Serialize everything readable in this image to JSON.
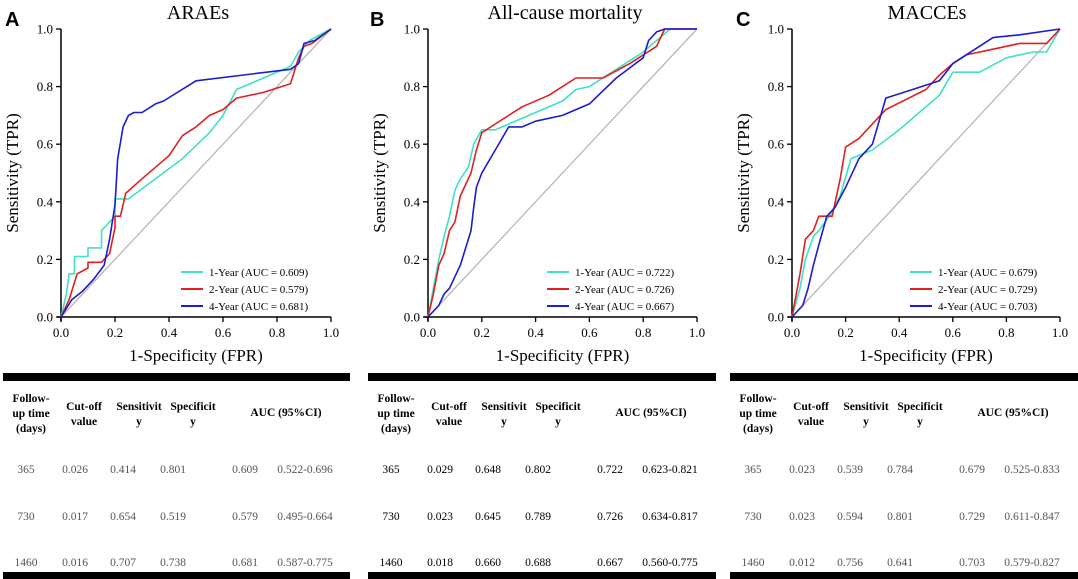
{
  "chart_data": [
    {
      "type": "line",
      "panel_letter": "A",
      "title": "ARAEs",
      "xlabel": "1-Specificity (FPR)",
      "ylabel": "Sensitivity (TPR)",
      "xlim": [
        0,
        1
      ],
      "ylim": [
        0,
        1
      ],
      "xticks": [
        "0.0",
        "0.2",
        "0.4",
        "0.6",
        "0.8",
        "1.0"
      ],
      "yticks": [
        "0.0",
        "0.2",
        "0.4",
        "0.6",
        "0.8",
        "1.0"
      ],
      "legend_position": "lower-right",
      "series": [
        {
          "name": "1-Year (AUC = 0.609)",
          "color": "#3fe0c8",
          "x": [
            0,
            0.02,
            0.03,
            0.05,
            0.05,
            0.1,
            0.1,
            0.15,
            0.15,
            0.2,
            0.2,
            0.25,
            0.45,
            0.55,
            0.6,
            0.65,
            0.75,
            0.85,
            0.88,
            0.92,
            1
          ],
          "y": [
            0,
            0.08,
            0.15,
            0.15,
            0.21,
            0.21,
            0.24,
            0.24,
            0.3,
            0.35,
            0.41,
            0.41,
            0.55,
            0.64,
            0.7,
            0.79,
            0.83,
            0.87,
            0.92,
            0.96,
            1
          ]
        },
        {
          "name": "2-Year (AUC = 0.579)",
          "color": "#e02020",
          "x": [
            0,
            0.03,
            0.06,
            0.1,
            0.1,
            0.15,
            0.18,
            0.2,
            0.2,
            0.22,
            0.24,
            0.3,
            0.4,
            0.45,
            0.5,
            0.55,
            0.6,
            0.65,
            0.75,
            0.85,
            0.88,
            0.9,
            0.93,
            1
          ],
          "y": [
            0,
            0.06,
            0.15,
            0.17,
            0.19,
            0.19,
            0.22,
            0.31,
            0.35,
            0.35,
            0.43,
            0.48,
            0.56,
            0.63,
            0.66,
            0.7,
            0.72,
            0.76,
            0.78,
            0.81,
            0.9,
            0.94,
            0.95,
            1
          ]
        },
        {
          "name": "4-Year (AUC = 0.681)",
          "color": "#1c1cd0",
          "x": [
            0,
            0.04,
            0.08,
            0.12,
            0.16,
            0.18,
            0.2,
            0.21,
            0.23,
            0.25,
            0.27,
            0.3,
            0.35,
            0.38,
            0.5,
            0.85,
            0.88,
            0.9,
            0.94,
            1
          ],
          "y": [
            0,
            0.06,
            0.09,
            0.13,
            0.18,
            0.27,
            0.39,
            0.55,
            0.66,
            0.7,
            0.71,
            0.71,
            0.74,
            0.75,
            0.82,
            0.86,
            0.88,
            0.95,
            0.96,
            1
          ]
        }
      ],
      "table": {
        "headers": [
          "Follow-up time (days)",
          "Cut-off value",
          "Sensitivity",
          "Specificity",
          "AUC (95%CI)"
        ],
        "rows": [
          {
            "days": "365",
            "cutoff": "0.026",
            "sens": "0.414",
            "spec": "0.801",
            "auc": "0.609",
            "ci": "0.522-0.696"
          },
          {
            "days": "730",
            "cutoff": "0.017",
            "sens": "0.654",
            "spec": "0.519",
            "auc": "0.579",
            "ci": "0.495-0.664"
          },
          {
            "days": "1460",
            "cutoff": "0.016",
            "sens": "0.707",
            "spec": "0.738",
            "auc": "0.681",
            "ci": "0.587-0.775"
          }
        ]
      }
    },
    {
      "type": "line",
      "panel_letter": "B",
      "title": "All-cause mortality",
      "xlabel": "1-Specificity (FPR)",
      "ylabel": "Sensitivity (TPR)",
      "xlim": [
        0,
        1
      ],
      "ylim": [
        0,
        1
      ],
      "xticks": [
        "0.0",
        "0.2",
        "0.4",
        "0.6",
        "0.8",
        "1.0"
      ],
      "yticks": [
        "0.0",
        "0.2",
        "0.4",
        "0.6",
        "0.8",
        "1.0"
      ],
      "legend_position": "lower-right",
      "series": [
        {
          "name": "1-Year (AUC = 0.722)",
          "color": "#3fe0c8",
          "x": [
            0,
            0.02,
            0.04,
            0.06,
            0.08,
            0.1,
            0.12,
            0.15,
            0.17,
            0.2,
            0.25,
            0.4,
            0.5,
            0.55,
            0.6,
            0.7,
            0.8,
            0.85,
            0.9,
            1
          ],
          "y": [
            0,
            0.1,
            0.2,
            0.28,
            0.35,
            0.44,
            0.48,
            0.52,
            0.6,
            0.65,
            0.65,
            0.71,
            0.75,
            0.79,
            0.8,
            0.86,
            0.92,
            0.96,
            1,
            1
          ]
        },
        {
          "name": "2-Year (AUC = 0.726)",
          "color": "#e02020",
          "x": [
            0,
            0.02,
            0.04,
            0.06,
            0.08,
            0.1,
            0.12,
            0.14,
            0.16,
            0.18,
            0.2,
            0.25,
            0.35,
            0.45,
            0.5,
            0.55,
            0.65,
            0.75,
            0.85,
            0.88,
            1
          ],
          "y": [
            0,
            0.08,
            0.18,
            0.22,
            0.3,
            0.33,
            0.42,
            0.46,
            0.5,
            0.58,
            0.64,
            0.67,
            0.73,
            0.77,
            0.8,
            0.83,
            0.83,
            0.88,
            0.94,
            1,
            1
          ]
        },
        {
          "name": "4-Year (AUC = 0.667)",
          "color": "#1c1cd0",
          "x": [
            0,
            0.04,
            0.06,
            0.08,
            0.1,
            0.12,
            0.14,
            0.16,
            0.17,
            0.18,
            0.2,
            0.25,
            0.3,
            0.35,
            0.4,
            0.5,
            0.6,
            0.7,
            0.8,
            0.82,
            0.85,
            0.88,
            1
          ],
          "y": [
            0,
            0.04,
            0.08,
            0.1,
            0.14,
            0.18,
            0.24,
            0.3,
            0.38,
            0.45,
            0.5,
            0.58,
            0.66,
            0.66,
            0.68,
            0.7,
            0.74,
            0.83,
            0.9,
            0.96,
            0.99,
            1,
            1
          ]
        }
      ],
      "table": {
        "headers": [
          "Follow-up time (days)",
          "Cut-off value",
          "Sensitivity",
          "Specificity",
          "AUC (95%CI)"
        ],
        "rows": [
          {
            "days": "365",
            "cutoff": "0.029",
            "sens": "0.648",
            "spec": "0.802",
            "auc": "0.722",
            "ci": "0.623-0.821"
          },
          {
            "days": "730",
            "cutoff": "0.023",
            "sens": "0.645",
            "spec": "0.789",
            "auc": "0.726",
            "ci": "0.634-0.817"
          },
          {
            "days": "1460",
            "cutoff": "0.018",
            "sens": "0.660",
            "spec": "0.688",
            "auc": "0.667",
            "ci": "0.560-0.775"
          }
        ]
      }
    },
    {
      "type": "line",
      "panel_letter": "C",
      "title": "MACCEs",
      "xlabel": "1-Specificity (FPR)",
      "ylabel": "Sensitivity (TPR)",
      "xlim": [
        0,
        1
      ],
      "ylim": [
        0,
        1
      ],
      "xticks": [
        "0.0",
        "0.2",
        "0.4",
        "0.6",
        "0.8",
        "1.0"
      ],
      "yticks": [
        "0.0",
        "0.2",
        "0.4",
        "0.6",
        "0.8",
        "1.0"
      ],
      "legend_position": "lower-right",
      "series": [
        {
          "name": "1-Year (AUC = 0.679)",
          "color": "#3fe0c8",
          "x": [
            0,
            0.03,
            0.05,
            0.08,
            0.1,
            0.14,
            0.18,
            0.22,
            0.3,
            0.4,
            0.55,
            0.6,
            0.7,
            0.8,
            0.9,
            0.95,
            1
          ],
          "y": [
            0,
            0.1,
            0.2,
            0.28,
            0.3,
            0.35,
            0.42,
            0.55,
            0.58,
            0.65,
            0.77,
            0.85,
            0.85,
            0.9,
            0.92,
            0.92,
            1
          ]
        },
        {
          "name": "2-Year (AUC = 0.729)",
          "color": "#e02020",
          "x": [
            0,
            0.03,
            0.05,
            0.08,
            0.1,
            0.15,
            0.18,
            0.2,
            0.25,
            0.35,
            0.5,
            0.55,
            0.6,
            0.65,
            0.75,
            0.85,
            0.95,
            1
          ],
          "y": [
            0,
            0.15,
            0.27,
            0.3,
            0.35,
            0.35,
            0.48,
            0.59,
            0.62,
            0.72,
            0.79,
            0.84,
            0.88,
            0.91,
            0.93,
            0.95,
            0.95,
            1
          ]
        },
        {
          "name": "4-Year (AUC = 0.703)",
          "color": "#1c1cd0",
          "x": [
            0,
            0.04,
            0.06,
            0.08,
            0.1,
            0.13,
            0.16,
            0.2,
            0.25,
            0.3,
            0.35,
            0.45,
            0.55,
            0.6,
            0.75,
            0.85,
            1
          ],
          "y": [
            0,
            0.04,
            0.1,
            0.18,
            0.25,
            0.35,
            0.38,
            0.45,
            0.55,
            0.6,
            0.76,
            0.79,
            0.82,
            0.88,
            0.97,
            0.98,
            1
          ]
        }
      ],
      "table": {
        "headers": [
          "Follow-up time (days)",
          "Cut-off value",
          "Sensitivity",
          "Specificity",
          "AUC (95%CI)"
        ],
        "rows": [
          {
            "days": "365",
            "cutoff": "0.023",
            "sens": "0.539",
            "spec": "0.784",
            "auc": "0.679",
            "ci": "0.525-0.833"
          },
          {
            "days": "730",
            "cutoff": "0.023",
            "sens": "0.594",
            "spec": "0.801",
            "auc": "0.729",
            "ci": "0.611-0.847"
          },
          {
            "days": "1460",
            "cutoff": "0.012",
            "sens": "0.756",
            "spec": "0.641",
            "auc": "0.703",
            "ci": "0.579-0.827"
          }
        ]
      }
    }
  ]
}
